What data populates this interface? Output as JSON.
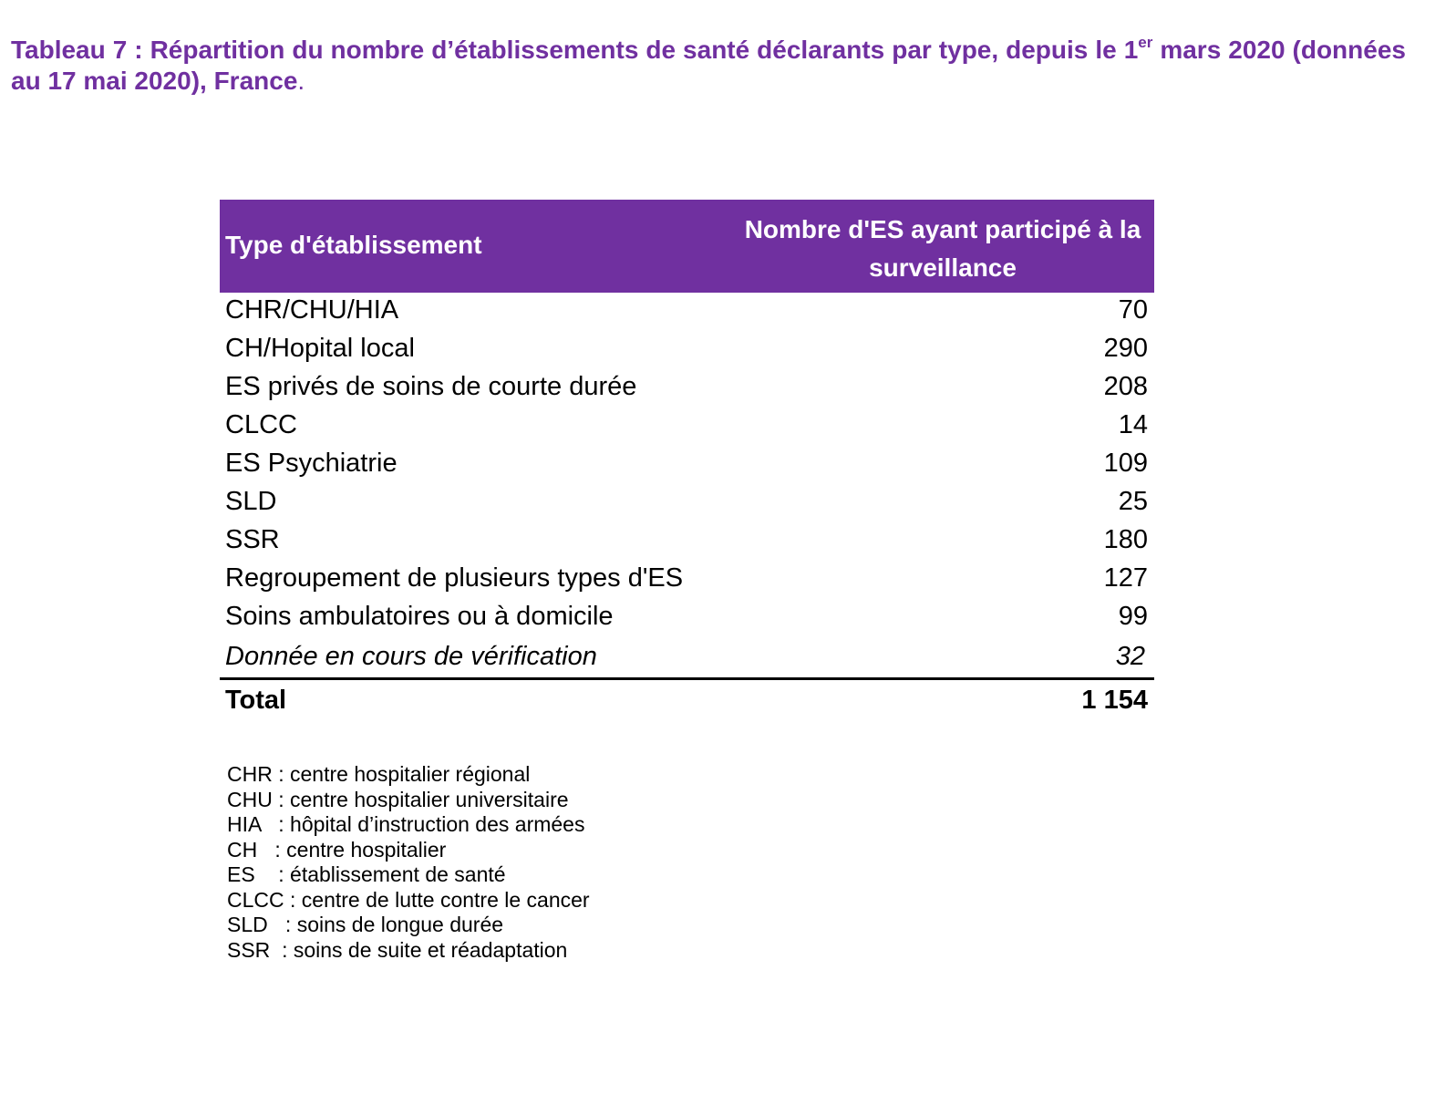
{
  "caption": {
    "part1": "Tableau 7 : Répartition du nombre d’établissements de santé déclarants par  type,  depuis le 1",
    "sup": "er",
    "part2": " mars 2020 (données au 17 mai 2020), France",
    "end": "."
  },
  "table": {
    "header": {
      "type_label": "Type d'établissement",
      "count_label": "Nombre d'ES ayant participé à la surveillance"
    },
    "rows": [
      {
        "label": "CHR/CHU/HIA",
        "value": "70"
      },
      {
        "label": "CH/Hopital local",
        "value": "290"
      },
      {
        "label": "ES privés de soins de courte durée",
        "value": "208"
      },
      {
        "label": "CLCC",
        "value": "14"
      },
      {
        "label": "ES Psychiatrie",
        "value": "109"
      },
      {
        "label": "SLD",
        "value": "25"
      },
      {
        "label": "SSR",
        "value": "180"
      },
      {
        "label": "Regroupement de plusieurs types d'ES",
        "value": "127"
      },
      {
        "label": "Soins ambulatoires ou à domicile",
        "value": "99"
      }
    ],
    "pending": {
      "label": "Donnée en cours de vérification",
      "value": "32"
    },
    "total": {
      "label": "Total",
      "value": "1 154"
    }
  },
  "legend": [
    "CHR : centre hospitalier régional",
    "CHU : centre hospitalier universitaire",
    "HIA   : hôpital d’instruction des armées",
    "CH   : centre hospitalier",
    "ES    : établissement de santé",
    "CLCC : centre de lutte contre le cancer",
    "SLD   : soins de longue durée",
    "SSR  : soins de suite et réadaptation"
  ],
  "colors": {
    "accent": "#7030a0",
    "text": "#000000",
    "header_text": "#ffffff"
  }
}
